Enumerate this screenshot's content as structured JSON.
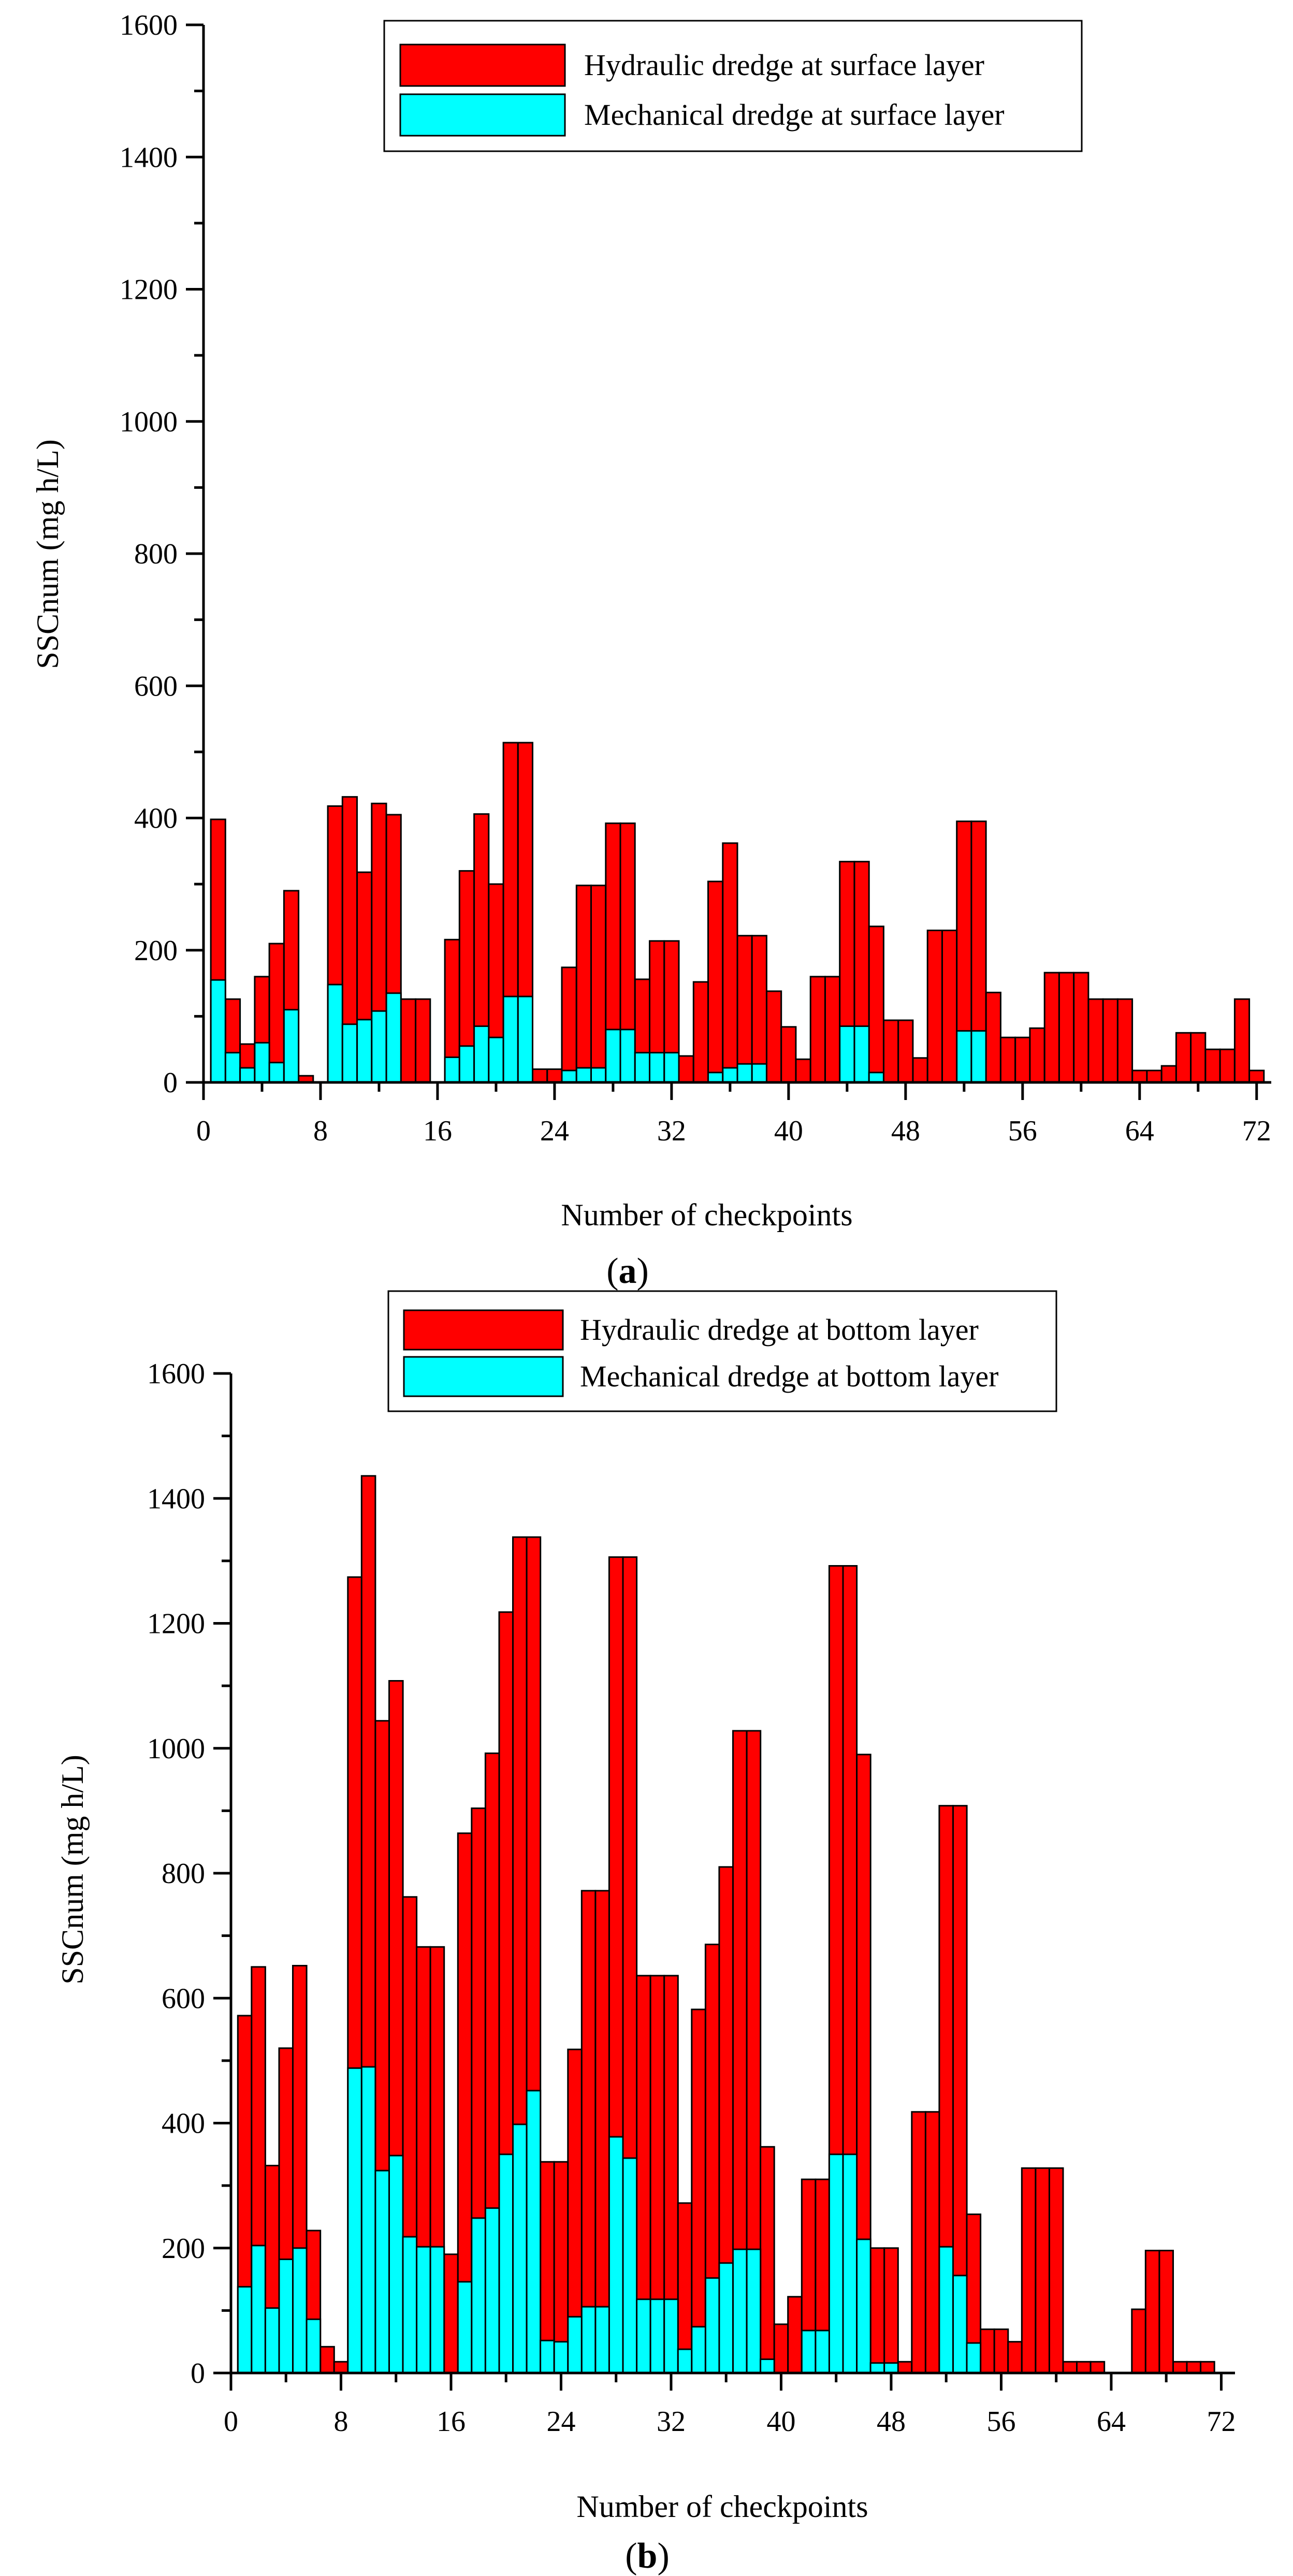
{
  "chart_data": [
    {
      "type": "bar",
      "stacked": false,
      "overlay": true,
      "panel": "a",
      "title": "",
      "xlabel": "Number of checkpoints",
      "ylabel": "SSCnum (mg h/L)",
      "xlim": [
        0,
        73
      ],
      "ylim": [
        0,
        1600
      ],
      "x_ticks": [
        0,
        8,
        16,
        24,
        32,
        40,
        48,
        56,
        64,
        72
      ],
      "y_ticks": [
        0,
        200,
        400,
        600,
        800,
        1000,
        1200,
        1400,
        1600
      ],
      "x": [
        1,
        2,
        3,
        4,
        5,
        6,
        7,
        8,
        9,
        10,
        11,
        12,
        13,
        14,
        15,
        16,
        17,
        18,
        19,
        20,
        21,
        22,
        23,
        24,
        25,
        26,
        27,
        28,
        29,
        30,
        31,
        32,
        33,
        34,
        35,
        36,
        37,
        38,
        39,
        40,
        41,
        42,
        43,
        44,
        45,
        46,
        47,
        48,
        49,
        50,
        51,
        52,
        53,
        54,
        55,
        56,
        57,
        58,
        59,
        60,
        61,
        62,
        63,
        64,
        65,
        66,
        67,
        68,
        69,
        70,
        71,
        72
      ],
      "legend": [
        "Hydraulic dredge at surface layer",
        "Mechanical dredge at surface layer"
      ],
      "legend_position": "top",
      "series": [
        {
          "name": "Hydraulic dredge at surface layer",
          "color": "#ff0000",
          "values": [
            398,
            126,
            58,
            160,
            210,
            290,
            10,
            0,
            418,
            432,
            318,
            422,
            405,
            126,
            126,
            0,
            216,
            320,
            406,
            300,
            514,
            514,
            20,
            20,
            174,
            298,
            298,
            392,
            392,
            156,
            214,
            214,
            40,
            152,
            304,
            362,
            222,
            222,
            138,
            84,
            35,
            160,
            160,
            334,
            334,
            236,
            94,
            94,
            37,
            230,
            230,
            395,
            395,
            136,
            68,
            68,
            82,
            166,
            166,
            166,
            126,
            126,
            126,
            18,
            18,
            25,
            75,
            75,
            50,
            50,
            126,
            18
          ]
        },
        {
          "name": "Mechanical dredge at surface layer",
          "color": "#00ffff",
          "values": [
            155,
            45,
            22,
            60,
            30,
            110,
            0,
            0,
            148,
            88,
            95,
            108,
            135,
            0,
            0,
            0,
            38,
            55,
            85,
            68,
            130,
            130,
            0,
            0,
            18,
            22,
            22,
            80,
            80,
            45,
            45,
            45,
            0,
            0,
            15,
            22,
            28,
            28,
            0,
            0,
            0,
            0,
            0,
            85,
            85,
            15,
            0,
            0,
            0,
            0,
            0,
            78,
            78,
            0,
            0,
            0,
            0,
            0,
            0,
            0,
            0,
            0,
            0,
            0,
            0,
            0,
            0,
            0,
            0,
            0,
            0,
            0
          ]
        }
      ]
    },
    {
      "type": "bar",
      "stacked": false,
      "overlay": true,
      "panel": "b",
      "title": "",
      "xlabel": "Number of checkpoints",
      "ylabel": "SSCnum (mg h/L)",
      "xlim": [
        0,
        73
      ],
      "ylim": [
        0,
        1600
      ],
      "x_ticks": [
        0,
        8,
        16,
        24,
        32,
        40,
        48,
        56,
        64,
        72
      ],
      "y_ticks": [
        0,
        200,
        400,
        600,
        800,
        1000,
        1200,
        1400,
        1600
      ],
      "x": [
        1,
        2,
        3,
        4,
        5,
        6,
        7,
        8,
        9,
        10,
        11,
        12,
        13,
        14,
        15,
        16,
        17,
        18,
        19,
        20,
        21,
        22,
        23,
        24,
        25,
        26,
        27,
        28,
        29,
        30,
        31,
        32,
        33,
        34,
        35,
        36,
        37,
        38,
        39,
        40,
        41,
        42,
        43,
        44,
        45,
        46,
        47,
        48,
        49,
        50,
        51,
        52,
        53,
        54,
        55,
        56,
        57,
        58,
        59,
        60,
        61,
        62,
        63,
        64,
        65,
        66,
        67,
        68,
        69,
        70,
        71,
        72
      ],
      "legend": [
        "Hydraulic dredge at bottom layer",
        "Mechanical dredge at bottom layer"
      ],
      "legend_position": "top",
      "series": [
        {
          "name": "Hydraulic dredge at bottom layer",
          "color": "#ff0000",
          "values": [
            572,
            650,
            332,
            520,
            652,
            228,
            42,
            18,
            1274,
            1436,
            1044,
            1108,
            762,
            682,
            682,
            190,
            864,
            904,
            992,
            1218,
            1338,
            1338,
            338,
            338,
            518,
            772,
            772,
            1306,
            1306,
            636,
            636,
            636,
            272,
            582,
            686,
            810,
            1028,
            1028,
            362,
            78,
            122,
            310,
            310,
            1292,
            1292,
            990,
            200,
            200,
            18,
            418,
            418,
            908,
            908,
            254,
            70,
            70,
            50,
            328,
            328,
            328,
            18,
            18,
            18,
            0,
            0,
            102,
            196,
            196,
            18,
            18,
            18,
            0
          ]
        },
        {
          "name": "Mechanical dredge at bottom layer",
          "color": "#00ffff",
          "values": [
            138,
            204,
            104,
            182,
            200,
            86,
            0,
            0,
            488,
            490,
            324,
            348,
            218,
            202,
            202,
            0,
            146,
            248,
            264,
            350,
            398,
            452,
            52,
            50,
            90,
            106,
            106,
            378,
            344,
            118,
            118,
            118,
            38,
            74,
            152,
            176,
            198,
            198,
            22,
            0,
            0,
            68,
            68,
            350,
            350,
            214,
            16,
            16,
            0,
            0,
            0,
            202,
            156,
            48,
            0,
            0,
            0,
            0,
            0,
            0,
            0,
            0,
            0,
            0,
            0,
            0,
            0,
            0,
            0,
            0,
            0,
            0
          ]
        }
      ]
    }
  ],
  "panels": [
    {
      "label_open": "(",
      "label": "a",
      "label_close": ")"
    },
    {
      "label_open": "(",
      "label": "b",
      "label_close": ")"
    }
  ]
}
